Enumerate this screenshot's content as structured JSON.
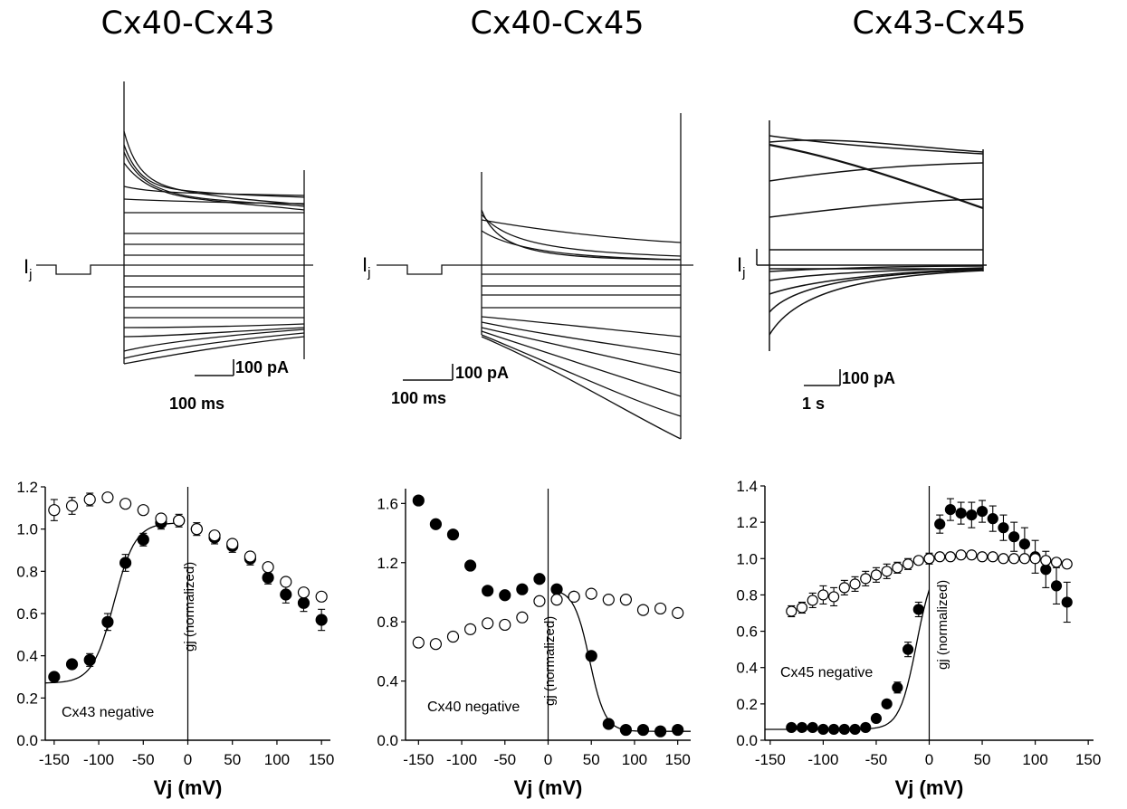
{
  "panels": [
    {
      "title": "Cx40-Cx43",
      "trace": {
        "current_label": "Ij",
        "scale_current": "100 pA",
        "scale_time": "100 ms"
      },
      "plot": {
        "annotation": "Cx43 negative",
        "ylabel_inset": "gj (normalized)",
        "xlabel": "Vj (mV)"
      }
    },
    {
      "title": "Cx40-Cx45",
      "trace": {
        "current_label": "Ij",
        "scale_current": "100 pA",
        "scale_time": "100 ms"
      },
      "plot": {
        "annotation": "Cx40 negative",
        "ylabel_inset": "gj (normalized)",
        "xlabel": "Vj (mV)"
      }
    },
    {
      "title": "Cx43-Cx45",
      "trace": {
        "current_label": "Ij",
        "scale_current": "100 pA",
        "scale_time": "1 s"
      },
      "plot": {
        "annotation": "Cx45 negative",
        "ylabel_inset": "gj (normalized)",
        "xlabel": "Vj (mV)"
      }
    }
  ],
  "chart_data": [
    {
      "type": "scatter",
      "xlabel": "Vj (mV)",
      "ylabel": "gj (normalized)",
      "xlim": [
        -160,
        160
      ],
      "ylim": [
        0,
        1.2
      ],
      "xticks": [
        -150,
        -100,
        -50,
        0,
        50,
        100,
        150
      ],
      "xtick_labels": [
        "-150",
        "-100",
        "-50",
        "0",
        "50",
        "100",
        "150"
      ],
      "yticks": [
        0.0,
        0.2,
        0.4,
        0.6,
        0.8,
        1.0,
        1.2
      ],
      "ytick_labels": [
        "0.0",
        "0.2",
        "0.4",
        "0.6",
        "0.8",
        "1.0",
        "1.2"
      ],
      "annotation": "Cx43 negative",
      "series": [
        {
          "marker": "filled",
          "fit": "boltzmann-left",
          "x": [
            -150,
            -130,
            -110,
            -90,
            -70,
            -50,
            -30,
            -10,
            10,
            30,
            50,
            70,
            90,
            110,
            130,
            150
          ],
          "y": [
            0.3,
            0.36,
            0.38,
            0.56,
            0.84,
            0.95,
            1.03,
            1.04,
            1.0,
            0.96,
            0.92,
            0.86,
            0.77,
            0.69,
            0.65,
            0.57
          ],
          "err": [
            0.02,
            0.02,
            0.03,
            0.04,
            0.04,
            0.03,
            0.03,
            0.03,
            0.03,
            0.03,
            0.03,
            0.03,
            0.03,
            0.04,
            0.04,
            0.05
          ]
        },
        {
          "marker": "open",
          "x": [
            -150,
            -130,
            -110,
            -90,
            -70,
            -50,
            -30,
            -10,
            10,
            30,
            50,
            70,
            90,
            110,
            130,
            150
          ],
          "y": [
            1.09,
            1.11,
            1.14,
            1.15,
            1.12,
            1.09,
            1.05,
            1.04,
            1.0,
            0.97,
            0.93,
            0.87,
            0.82,
            0.75,
            0.7,
            0.68
          ],
          "err": [
            0.05,
            0.04,
            0.03,
            0.02,
            0.02,
            0.02,
            0.02,
            0.02,
            0.02,
            0.02,
            0.02,
            0.02,
            0.02,
            0.02,
            0.02,
            0.02
          ]
        }
      ]
    },
    {
      "type": "scatter",
      "xlabel": "Vj (mV)",
      "ylabel": "gj (normalized)",
      "xlim": [
        -165,
        165
      ],
      "ylim": [
        0,
        1.7
      ],
      "xticks": [
        -150,
        -100,
        -50,
        0,
        50,
        100,
        150
      ],
      "xtick_labels": [
        "-150",
        "-100",
        "-50",
        "0",
        "50",
        "100",
        "150"
      ],
      "yticks": [
        0.0,
        0.4,
        0.8,
        1.2,
        1.6
      ],
      "ytick_labels": [
        "0.0",
        "0.4",
        "0.8",
        "1.2",
        "1.6"
      ],
      "annotation": "Cx40 negative",
      "series": [
        {
          "marker": "filled",
          "fit": "boltzmann-right",
          "x": [
            -150,
            -130,
            -110,
            -90,
            -70,
            -50,
            -30,
            -10,
            10,
            30,
            50,
            70,
            90,
            110,
            130,
            150
          ],
          "y": [
            1.62,
            1.46,
            1.39,
            1.18,
            1.01,
            0.98,
            1.02,
            1.09,
            1.02,
            0.97,
            0.57,
            0.11,
            0.07,
            0.07,
            0.06,
            0.07
          ]
        },
        {
          "marker": "open",
          "x": [
            -150,
            -130,
            -110,
            -90,
            -70,
            -50,
            -30,
            -10,
            10,
            30,
            50,
            70,
            90,
            110,
            130,
            150
          ],
          "y": [
            0.66,
            0.65,
            0.7,
            0.75,
            0.79,
            0.78,
            0.83,
            0.94,
            0.95,
            0.97,
            0.99,
            0.95,
            0.95,
            0.88,
            0.89,
            0.86
          ]
        }
      ]
    },
    {
      "type": "scatter",
      "xlabel": "Vj (mV)",
      "ylabel": "gj (normalized)",
      "xlim": [
        -155,
        155
      ],
      "ylim": [
        0,
        1.4
      ],
      "xticks": [
        -150,
        -100,
        -50,
        0,
        50,
        100,
        150
      ],
      "xtick_labels": [
        "-150",
        "-100",
        "-50",
        "0",
        "50",
        "100",
        "150"
      ],
      "yticks": [
        0.0,
        0.2,
        0.4,
        0.6,
        0.8,
        1.0,
        1.2,
        1.4
      ],
      "ytick_labels": [
        "0.0",
        "0.2",
        "0.4",
        "0.6",
        "0.8",
        "1.0",
        "1.2",
        "1.4"
      ],
      "annotation": "Cx45 negative",
      "series": [
        {
          "marker": "filled",
          "fit": "boltzmann-left",
          "x": [
            -130,
            -120,
            -110,
            -100,
            -90,
            -80,
            -70,
            -60,
            -50,
            -40,
            -30,
            -20,
            -10,
            0,
            10,
            20,
            30,
            40,
            50,
            60,
            70,
            80,
            90,
            100,
            110,
            120,
            130
          ],
          "y": [
            0.07,
            0.07,
            0.07,
            0.06,
            0.06,
            0.06,
            0.06,
            0.07,
            0.12,
            0.2,
            0.29,
            0.5,
            0.72,
            1.0,
            1.19,
            1.27,
            1.25,
            1.24,
            1.26,
            1.22,
            1.17,
            1.12,
            1.08,
            1.01,
            0.94,
            0.85,
            0.76
          ],
          "err": [
            0.0,
            0.0,
            0.0,
            0.0,
            0.0,
            0.0,
            0.0,
            0.0,
            0.01,
            0.02,
            0.03,
            0.04,
            0.04,
            0.03,
            0.05,
            0.06,
            0.06,
            0.07,
            0.06,
            0.07,
            0.07,
            0.08,
            0.09,
            0.09,
            0.1,
            0.1,
            0.11
          ]
        },
        {
          "marker": "open",
          "x": [
            -130,
            -120,
            -110,
            -100,
            -90,
            -80,
            -70,
            -60,
            -50,
            -40,
            -30,
            -20,
            -10,
            0,
            10,
            20,
            30,
            40,
            50,
            60,
            70,
            80,
            90,
            100,
            110,
            120,
            130
          ],
          "y": [
            0.71,
            0.73,
            0.77,
            0.8,
            0.79,
            0.84,
            0.86,
            0.89,
            0.91,
            0.93,
            0.95,
            0.97,
            0.99,
            1.0,
            1.01,
            1.01,
            1.02,
            1.02,
            1.01,
            1.01,
            1.0,
            1.0,
            1.0,
            1.0,
            0.99,
            0.98,
            0.97
          ],
          "err": [
            0.03,
            0.03,
            0.04,
            0.05,
            0.05,
            0.04,
            0.04,
            0.04,
            0.04,
            0.04,
            0.03,
            0.03,
            0.02,
            0.01,
            0.01,
            0.01,
            0.01,
            0.01,
            0.01,
            0.01,
            0.01,
            0.01,
            0.01,
            0.01,
            0.02,
            0.02,
            0.02
          ]
        }
      ]
    }
  ]
}
